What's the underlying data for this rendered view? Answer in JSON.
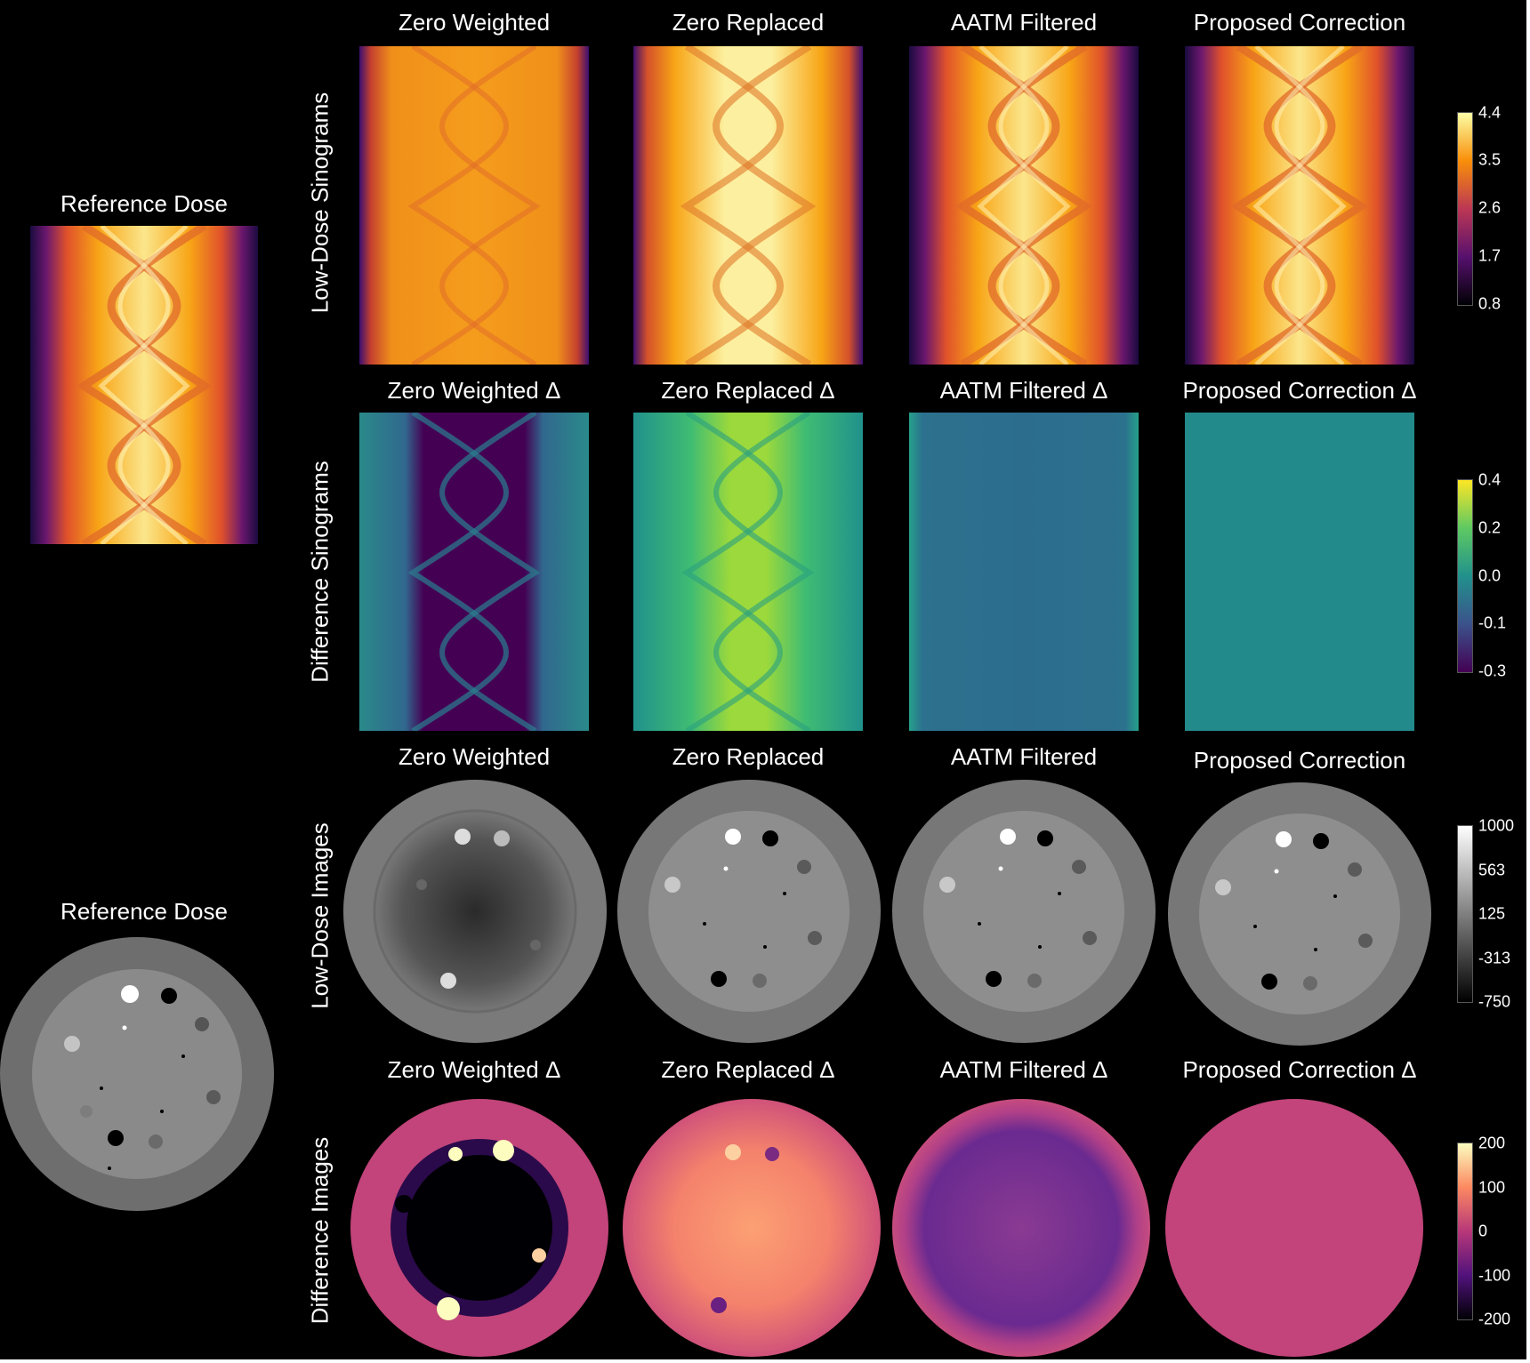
{
  "reference": {
    "sinogram_title": "Reference Dose",
    "image_title": "Reference Dose"
  },
  "row_labels": {
    "low_dose_sinograms": "Low-Dose Sinograms",
    "difference_sinograms": "Difference Sinograms",
    "low_dose_images": "Low-Dose Images",
    "difference_images": "Difference Images"
  },
  "columns": {
    "sinograms": [
      "Zero Weighted",
      "Zero Replaced",
      "AATM Filtered",
      "Proposed Correction"
    ],
    "difference_sinograms": [
      "Zero Weighted Δ",
      "Zero Replaced Δ",
      "AATM Filtered Δ",
      "Proposed Correction Δ"
    ],
    "images": [
      "Zero Weighted",
      "Zero Replaced",
      "AATM Filtered",
      "Proposed Correction"
    ],
    "difference_images": [
      "Zero Weighted Δ",
      "Zero Replaced Δ",
      "AATM Filtered Δ",
      "Proposed Correction Δ"
    ]
  },
  "colorbars": {
    "sinogram": {
      "colormap": "inferno",
      "ticks": [
        "4.4",
        "3.5",
        "2.6",
        "1.7",
        "0.8"
      ],
      "colors": [
        "#fcffa4",
        "#f98e09",
        "#bc3754",
        "#57106e",
        "#000004"
      ]
    },
    "difference_sinogram": {
      "colormap": "viridis",
      "ticks": [
        "0.4",
        "0.2",
        "0.0",
        "-0.1",
        "-0.3"
      ],
      "colors": [
        "#fde725",
        "#5ec962",
        "#21918c",
        "#3b528b",
        "#440154"
      ]
    },
    "image": {
      "colormap": "gray",
      "ticks": [
        "1000",
        "563",
        "125",
        "-313",
        "-750"
      ],
      "colors": [
        "#ffffff",
        "#000000"
      ]
    },
    "difference_image": {
      "colormap": "magma",
      "ticks": [
        "200",
        "100",
        "0",
        "-100",
        "-200"
      ],
      "colors": [
        "#fcfdbf",
        "#fc8961",
        "#b73779",
        "#51127c",
        "#000004"
      ]
    }
  }
}
